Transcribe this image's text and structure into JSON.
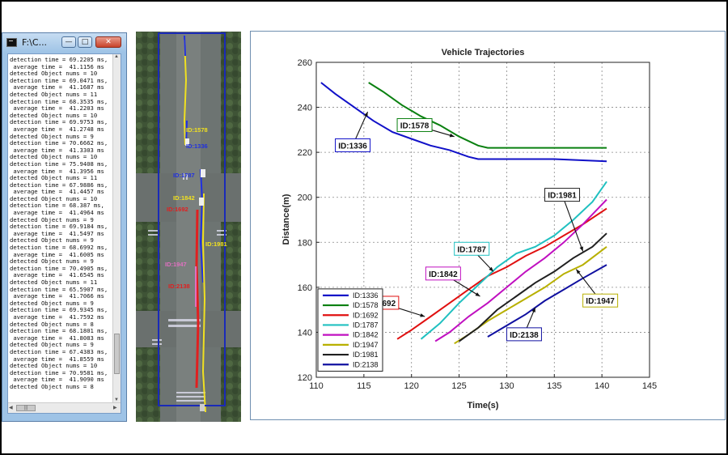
{
  "console": {
    "title": "F:\\C...",
    "buttons": {
      "minimize": "—",
      "maximize": "□",
      "close": "✕"
    },
    "lines": [
      "detection time = 69.2205 ms,",
      " average time =  41.1156 ms",
      "detected Object nums = 10",
      "detection time = 69.0471 ms,",
      " average time =  41.1687 ms",
      "detected Object nums = 11",
      "detection time = 68.3535 ms,",
      " average time =  41.2203 ms",
      "detected Object nums = 10",
      "detection time = 69.9753 ms,",
      " average time =  41.2748 ms",
      "detected Object nums = 9",
      "detection time = 70.6662 ms,",
      " average time =  41.3303 ms",
      "detected Object nums = 10",
      "detection time = 75.9408 ms,",
      " average time =  41.3956 ms",
      "detected Object nums = 11",
      "detection time = 67.9886 ms,",
      " average time =  41.4457 ms",
      "detected Object nums = 10",
      "detection time = 68.387 ms,",
      " average time =  41.4964 ms",
      "detected Object nums = 9",
      "detection time = 69.9184 ms,",
      " average time =  41.5497 ms",
      "detected Object nums = 9",
      "detection time = 68.6992 ms,",
      " average time =  41.6005 ms",
      "detected Object nums = 9",
      "detection time = 70.4905 ms,",
      " average time =  41.6545 ms",
      "detected Object nums = 11",
      "detection time = 65.5907 ms,",
      " average time =  41.7066 ms",
      "detected Object nums = 9",
      "detection time = 69.9345 ms,",
      " average time =  41.7592 ms",
      "detected Object nums = 8",
      "detection time = 68.1801 ms,",
      " average time =  41.8083 ms",
      "detected Object nums = 9",
      "detection time = 67.4383 ms,",
      " average time =  41.8559 ms",
      "detected Object nums = 10",
      "detection time = 70.9581 ms,",
      " average time =  41.9090 ms",
      "detected Object nums = 8"
    ]
  },
  "aerial": {
    "labels": [
      {
        "text": "ID:1578",
        "color": "#f0e020"
      },
      {
        "text": "ID:1336",
        "color": "#2030e0"
      },
      {
        "text": "ID:1787",
        "color": "#2030e0"
      },
      {
        "text": "ID:1842",
        "color": "#f0e020"
      },
      {
        "text": "ID:1692",
        "color": "#e02020"
      },
      {
        "text": "ID:1981",
        "color": "#f0e020"
      },
      {
        "text": "ID:1947",
        "color": "#e070c0"
      },
      {
        "text": "ID:2138",
        "color": "#e02020"
      }
    ]
  },
  "chart_data": {
    "type": "line",
    "title": "Vehicle Trajectories",
    "xlabel": "Time(s)",
    "ylabel": "Distance(m)",
    "xlim": [
      110,
      145
    ],
    "ylim": [
      120,
      260
    ],
    "xticks": [
      "110",
      "115",
      "120",
      "125",
      "130",
      "135",
      "140",
      "145"
    ],
    "yticks": [
      "120",
      "140",
      "160",
      "180",
      "200",
      "220",
      "240",
      "260"
    ],
    "grid": true,
    "legend_position": "bottom-left",
    "series": [
      {
        "name": "ID:1336",
        "color": "#1010c8",
        "x": [
          110.5,
          112,
          114,
          116,
          118,
          120,
          122,
          124,
          126,
          127,
          128,
          130,
          135,
          140.5
        ],
        "y": [
          251,
          246,
          240,
          234,
          229,
          226,
          223,
          221,
          218,
          217,
          217,
          217,
          217,
          216
        ]
      },
      {
        "name": "ID:1578",
        "color": "#0a8010",
        "x": [
          115.5,
          117,
          119,
          121,
          123,
          125,
          127,
          128,
          130,
          135,
          140.5
        ],
        "y": [
          251,
          247,
          241,
          236,
          232,
          227,
          223,
          222,
          222,
          222,
          222
        ]
      },
      {
        "name": "ID:1692",
        "color": "#e01010",
        "x": [
          118.5,
          120,
          122,
          124,
          126,
          128,
          130,
          132,
          134,
          136,
          138,
          140.5
        ],
        "y": [
          137,
          141,
          147,
          153,
          159,
          165,
          169,
          174,
          178,
          183,
          188,
          195
        ]
      },
      {
        "name": "ID:1787",
        "color": "#20c0c0",
        "x": [
          121,
          123,
          125,
          127,
          129,
          131,
          133,
          135,
          137,
          139,
          140.5
        ],
        "y": [
          137,
          144,
          153,
          161,
          169,
          175,
          178,
          183,
          190,
          198,
          207
        ]
      },
      {
        "name": "ID:1842",
        "color": "#c010c0",
        "x": [
          122.5,
          124,
          126,
          128,
          130,
          132,
          134,
          136,
          138,
          140.5
        ],
        "y": [
          136,
          140,
          147,
          153,
          160,
          167,
          173,
          180,
          188,
          199
        ]
      },
      {
        "name": "ID:1947",
        "color": "#b8b000",
        "x": [
          124.5,
          126,
          128,
          130,
          132,
          134,
          136,
          138,
          140.5
        ],
        "y": [
          135,
          139,
          145,
          150,
          155,
          160,
          166,
          170,
          178
        ]
      },
      {
        "name": "ID:1981",
        "color": "#202020",
        "x": [
          125,
          127,
          129,
          131,
          133,
          135,
          137,
          139,
          140.5
        ],
        "y": [
          136,
          142,
          150,
          156,
          162,
          167,
          173,
          178,
          184
        ]
      },
      {
        "name": "ID:2138",
        "color": "#1010a0",
        "x": [
          128,
          130,
          132,
          134,
          136,
          138,
          140.5
        ],
        "y": [
          138,
          143,
          148,
          154,
          159,
          164,
          170
        ]
      }
    ],
    "annotations": [
      {
        "text": "ID:1578",
        "at_x": 124.5,
        "at_y": 227,
        "label_x": 118.5,
        "label_y": 235,
        "color": "#0a8010"
      },
      {
        "text": "ID:1336",
        "at_x": 115.4,
        "at_y": 238,
        "label_x": 112,
        "label_y": 226,
        "color": "#1010c8"
      },
      {
        "text": "ID:1981",
        "at_x": 138,
        "at_y": 176,
        "label_x": 134,
        "label_y": 204,
        "color": "#202020"
      },
      {
        "text": "ID:1787",
        "at_x": 128.6,
        "at_y": 167,
        "label_x": 124.5,
        "label_y": 180,
        "color": "#20c0c0"
      },
      {
        "text": "ID:1842",
        "at_x": 127.2,
        "at_y": 156,
        "label_x": 121.5,
        "label_y": 169,
        "color": "#c010c0"
      },
      {
        "text": "ID:1692",
        "at_x": 121.4,
        "at_y": 147,
        "label_x": 115,
        "label_y": 156,
        "color": "#e01010"
      },
      {
        "text": "ID:1947",
        "at_x": 137.3,
        "at_y": 168,
        "label_x": 138,
        "label_y": 157,
        "color": "#b8b000"
      },
      {
        "text": "ID:2138",
        "at_x": 133,
        "at_y": 151,
        "label_x": 130,
        "label_y": 142,
        "color": "#1010a0"
      }
    ]
  }
}
